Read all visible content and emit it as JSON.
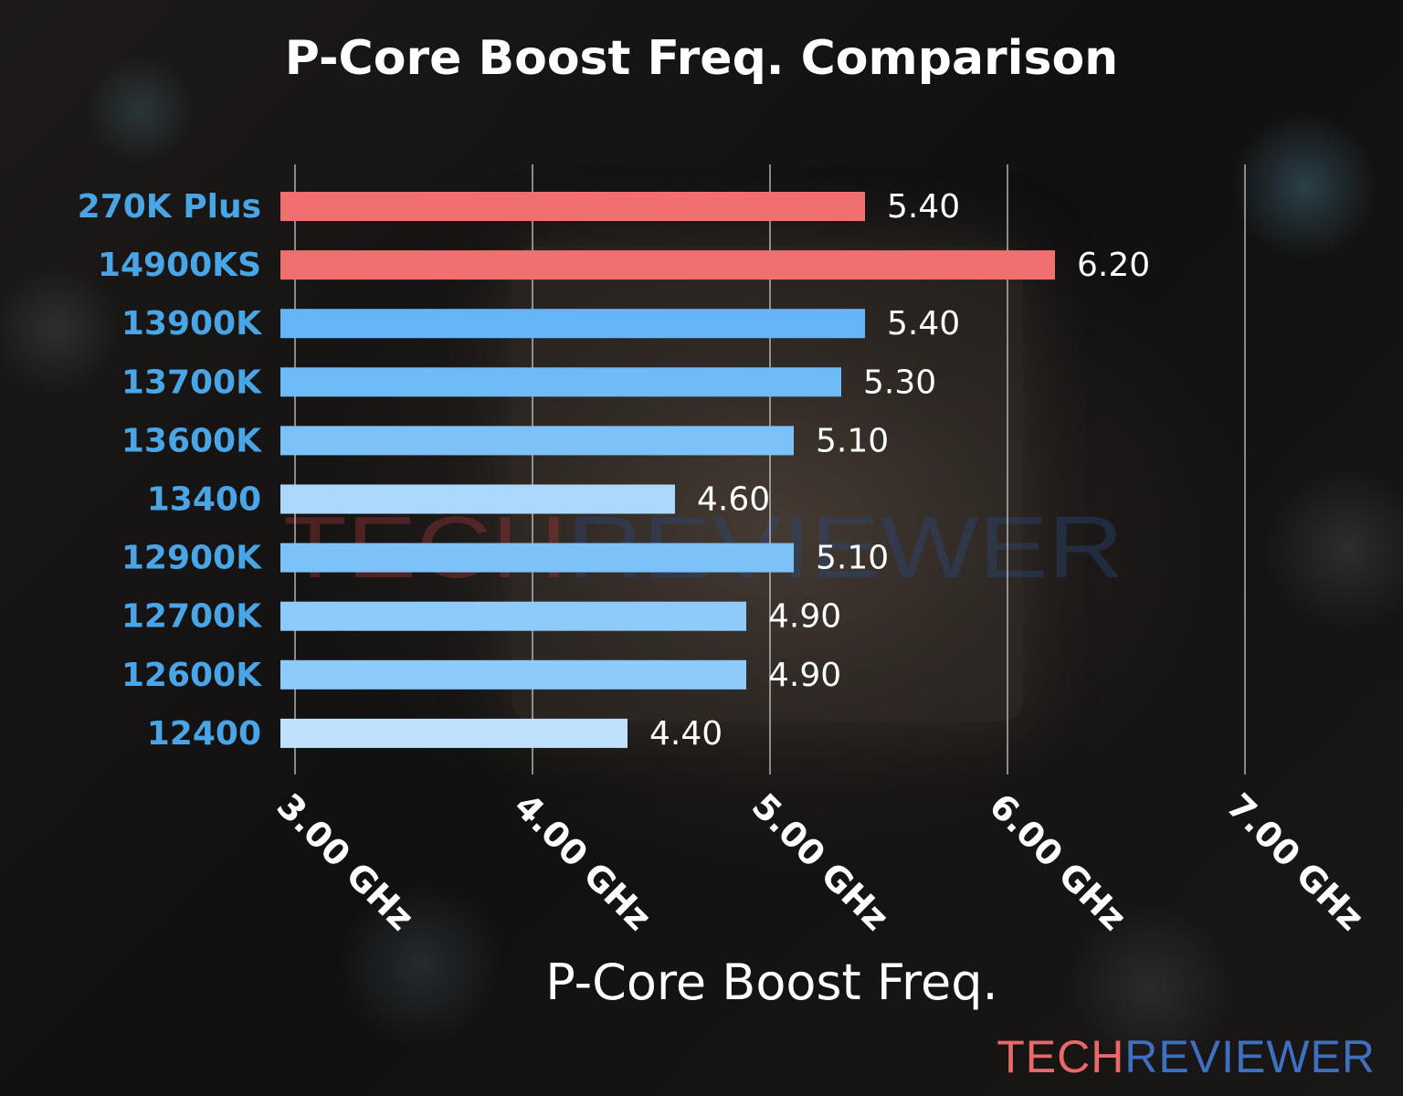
{
  "chart_data": {
    "type": "bar",
    "orientation": "horizontal",
    "title": "P-Core Boost Freq. Comparison",
    "xlabel": "P-Core Boost Freq.",
    "ylabel": "",
    "xlim": [
      3.0,
      7.0
    ],
    "xticks": [
      {
        "value": 3.0,
        "label": "3.00 GHz"
      },
      {
        "value": 4.0,
        "label": "4.00 GHz"
      },
      {
        "value": 5.0,
        "label": "5.00 GHz"
      },
      {
        "value": 6.0,
        "label": "6.00 GHz"
      },
      {
        "value": 7.0,
        "label": "7.00 GHz"
      }
    ],
    "grid": "vertical",
    "legend": "none",
    "bars": [
      {
        "label": "270K Plus",
        "value": 5.4,
        "value_label": "5.40",
        "color": "#f07070"
      },
      {
        "label": "14900KS",
        "value": 6.2,
        "value_label": "6.20",
        "color": "#f07070"
      },
      {
        "label": "13900K",
        "value": 5.4,
        "value_label": "5.40",
        "color": "#66b6f7"
      },
      {
        "label": "13700K",
        "value": 5.3,
        "value_label": "5.30",
        "color": "#6ebbf8"
      },
      {
        "label": "13600K",
        "value": 5.1,
        "value_label": "5.10",
        "color": "#7cc2f9"
      },
      {
        "label": "13400",
        "value": 4.6,
        "value_label": "4.60",
        "color": "#acd8fc"
      },
      {
        "label": "12900K",
        "value": 5.1,
        "value_label": "5.10",
        "color": "#7cc2f9"
      },
      {
        "label": "12700K",
        "value": 4.9,
        "value_label": "4.90",
        "color": "#8ecbfa"
      },
      {
        "label": "12600K",
        "value": 4.9,
        "value_label": "4.90",
        "color": "#8ecbfa"
      },
      {
        "label": "12400",
        "value": 4.4,
        "value_label": "4.40",
        "color": "#bfe1fd"
      }
    ],
    "category_label_color": "#4aa5e6",
    "value_label_color": "#ffffff",
    "grid_color": "#d8d8d8"
  },
  "watermark": {
    "part1": "TECH",
    "part2": "REVIEWER"
  },
  "logo": {
    "part1": "TECH",
    "part2": "REVIEWER"
  }
}
